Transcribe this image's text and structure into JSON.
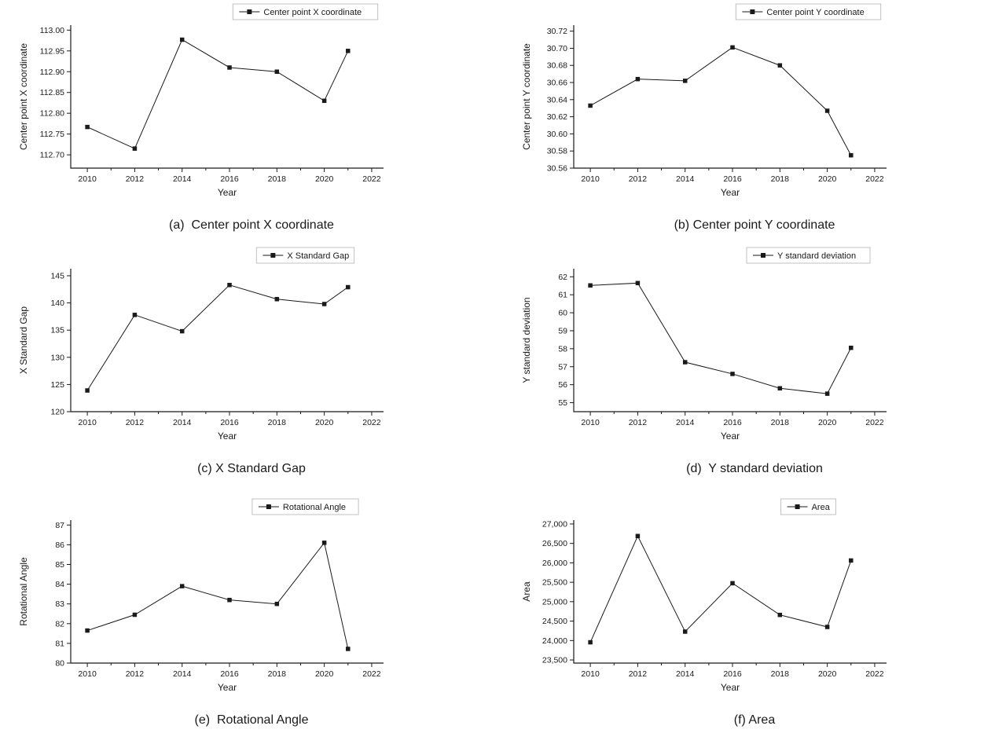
{
  "chart_data": [
    {
      "type": "line",
      "caption": "(a)  Center point X coordinate",
      "legend": "Center point X coordinate",
      "xlabel": "Year",
      "ylabel": "Center point X coordinate",
      "x": [
        2010,
        2012,
        2014,
        2016,
        2018,
        2020,
        2021
      ],
      "values": [
        112.767,
        112.715,
        112.977,
        112.91,
        112.9,
        112.83,
        112.95
      ],
      "xlim": [
        2009.3,
        2022.5
      ],
      "ylim": [
        112.668,
        113.012
      ],
      "xticks": [
        2010,
        2012,
        2014,
        2016,
        2018,
        2020,
        2022
      ],
      "xminor": [
        2011,
        2013,
        2015,
        2017,
        2019,
        2021
      ],
      "yticks": [
        112.7,
        112.75,
        112.8,
        112.85,
        112.9,
        112.95,
        113.0
      ],
      "ytick_labels": [
        "112.70",
        "112.75",
        "112.80",
        "112.85",
        "112.90",
        "112.95",
        "113.00"
      ],
      "grid": false,
      "legend_position": "top"
    },
    {
      "type": "line",
      "caption": "(b) Center point Y coordinate",
      "legend": "Center point Y coordinate",
      "xlabel": "Year",
      "ylabel": "Center point Y coordinate",
      "x": [
        2010,
        2012,
        2014,
        2016,
        2018,
        2020,
        2021
      ],
      "values": [
        30.633,
        30.664,
        30.662,
        30.701,
        30.68,
        30.627,
        30.575
      ],
      "xlim": [
        2009.3,
        2022.5
      ],
      "ylim": [
        30.56,
        30.727
      ],
      "xticks": [
        2010,
        2012,
        2014,
        2016,
        2018,
        2020,
        2022
      ],
      "xminor": [
        2011,
        2013,
        2015,
        2017,
        2019,
        2021
      ],
      "yticks": [
        30.56,
        30.58,
        30.6,
        30.62,
        30.64,
        30.66,
        30.68,
        30.7,
        30.72
      ],
      "ytick_labels": [
        "30.56",
        "30.58",
        "30.60",
        "30.62",
        "30.64",
        "30.66",
        "30.68",
        "30.70",
        "30.72"
      ],
      "grid": false,
      "legend_position": "top"
    },
    {
      "type": "line",
      "caption": "(c) X Standard Gap",
      "legend": "X Standard Gap",
      "xlabel": "Year",
      "ylabel": "X Standard Gap",
      "x": [
        2010,
        2012,
        2014,
        2016,
        2018,
        2020,
        2021
      ],
      "values": [
        123.9,
        137.8,
        134.8,
        143.3,
        140.7,
        139.8,
        142.9
      ],
      "xlim": [
        2009.3,
        2022.5
      ],
      "ylim": [
        120,
        146.3
      ],
      "xticks": [
        2010,
        2012,
        2014,
        2016,
        2018,
        2020,
        2022
      ],
      "xminor": [
        2011,
        2013,
        2015,
        2017,
        2019,
        2021
      ],
      "yticks": [
        120,
        125,
        130,
        135,
        140,
        145
      ],
      "ytick_labels": [
        "120",
        "125",
        "130",
        "135",
        "140",
        "145"
      ],
      "grid": false,
      "legend_position": "top"
    },
    {
      "type": "line",
      "caption": "(d)  Y standard deviation",
      "legend": "Y standard deviation",
      "xlabel": "Year",
      "ylabel": "Y standard deviation",
      "x": [
        2010,
        2012,
        2014,
        2016,
        2018,
        2020,
        2021
      ],
      "values": [
        61.52,
        61.65,
        57.25,
        56.6,
        55.8,
        55.5,
        58.05
      ],
      "xlim": [
        2009.3,
        2022.5
      ],
      "ylim": [
        54.5,
        62.45
      ],
      "xticks": [
        2010,
        2012,
        2014,
        2016,
        2018,
        2020,
        2022
      ],
      "xminor": [
        2011,
        2013,
        2015,
        2017,
        2019,
        2021
      ],
      "yticks": [
        55,
        56,
        57,
        58,
        59,
        60,
        61,
        62
      ],
      "ytick_labels": [
        "55",
        "56",
        "57",
        "58",
        "59",
        "60",
        "61",
        "62"
      ],
      "grid": false,
      "legend_position": "top"
    },
    {
      "type": "line",
      "caption": "(e)  Rotational Angle",
      "legend": "Rotational Angle",
      "xlabel": "Year",
      "ylabel": "Rotational Angle",
      "x": [
        2010,
        2012,
        2014,
        2016,
        2018,
        2020,
        2021
      ],
      "values": [
        81.65,
        82.45,
        83.9,
        83.2,
        83.0,
        86.1,
        80.72
      ],
      "xlim": [
        2009.3,
        2022.5
      ],
      "ylim": [
        80,
        87.25
      ],
      "xticks": [
        2010,
        2012,
        2014,
        2016,
        2018,
        2020,
        2022
      ],
      "xminor": [
        2011,
        2013,
        2015,
        2017,
        2019,
        2021
      ],
      "yticks": [
        80,
        81,
        82,
        83,
        84,
        85,
        86,
        87
      ],
      "ytick_labels": [
        "80",
        "81",
        "82",
        "83",
        "84",
        "85",
        "86",
        "87"
      ],
      "grid": false,
      "legend_position": "top"
    },
    {
      "type": "line",
      "caption": "(f) Area",
      "legend": "Area",
      "xlabel": "Year",
      "ylabel": "Area",
      "x": [
        2010,
        2012,
        2014,
        2016,
        2018,
        2020,
        2021
      ],
      "values": [
        23955,
        26690,
        24230,
        25475,
        24660,
        24350,
        26060
      ],
      "xlim": [
        2009.3,
        2022.5
      ],
      "ylim": [
        23420,
        27100
      ],
      "xticks": [
        2010,
        2012,
        2014,
        2016,
        2018,
        2020,
        2022
      ],
      "xminor": [
        2011,
        2013,
        2015,
        2017,
        2019,
        2021
      ],
      "yticks": [
        23500,
        24000,
        24500,
        25000,
        25500,
        26000,
        26500,
        27000
      ],
      "ytick_labels": [
        "23,500",
        "24,000",
        "24,500",
        "25,000",
        "25,500",
        "26,000",
        "26,500",
        "27,000"
      ],
      "grid": false,
      "legend_position": "top"
    }
  ],
  "colors": {
    "line": "#1a1a1a",
    "marker": "#1a1a1a",
    "axis": "#1a1a1a",
    "legend_border": "#c0c0c0",
    "background": "#ffffff"
  }
}
